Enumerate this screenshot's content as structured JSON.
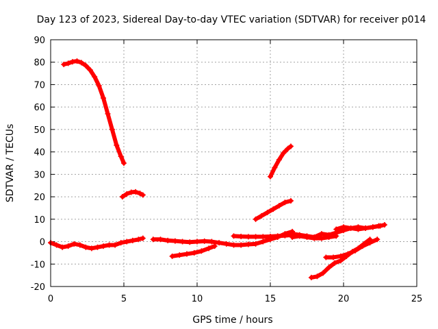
{
  "chart_data": {
    "type": "scatter",
    "title": "Day 123 of 2023, Sidereal Day-to-day VTEC variation (SDTVAR) for receiver p014",
    "xlabel": "GPS time / hours",
    "ylabel": "SDTVAR / TECUs",
    "xlim": [
      0,
      25
    ],
    "ylim": [
      -20,
      90
    ],
    "xticks": [
      0,
      5,
      10,
      15,
      20,
      25
    ],
    "yticks": [
      -20,
      -10,
      0,
      10,
      20,
      30,
      40,
      50,
      60,
      70,
      80,
      90
    ],
    "grid": true,
    "color": "#ff0000",
    "marker": "plus",
    "series": [
      {
        "x": [
          0.9,
          1.2,
          1.5,
          1.8,
          2.1,
          2.4,
          2.7,
          3.0,
          3.3,
          3.6,
          3.9,
          4.2,
          4.5,
          4.8,
          5.0
        ],
        "y": [
          79,
          79.5,
          80.2,
          80.5,
          79.8,
          78.5,
          76.5,
          73.5,
          69.5,
          64,
          57,
          50,
          43,
          38,
          35
        ]
      },
      {
        "x": [
          4.9,
          5.2,
          5.5,
          5.8,
          6.1,
          6.3
        ],
        "y": [
          20,
          21.3,
          22,
          22.2,
          21.5,
          20.8
        ]
      },
      {
        "x": [
          0.0,
          0.4,
          0.8,
          1.2,
          1.6,
          2.0,
          2.4,
          2.8,
          3.2,
          3.6,
          4.0,
          4.4,
          4.8,
          5.2,
          5.6,
          6.0,
          6.3
        ],
        "y": [
          -0.5,
          -1.5,
          -2.5,
          -2,
          -1,
          -1.5,
          -2.5,
          -3,
          -2.5,
          -2,
          -1.5,
          -1.5,
          -0.5,
          0,
          0.5,
          1,
          1.5
        ]
      },
      {
        "x": [
          7.0,
          7.5,
          8.0,
          8.5,
          9.0,
          9.5,
          10.0,
          10.5,
          11.0,
          11.5,
          12.0,
          12.5,
          13.0,
          13.5,
          14.0,
          14.5,
          15.0,
          15.5,
          16.0,
          16.5
        ],
        "y": [
          1,
          1,
          0.5,
          0.3,
          0,
          -0.2,
          0,
          0.2,
          0,
          -0.5,
          -1,
          -1.5,
          -1.5,
          -1.2,
          -1,
          0,
          1,
          2,
          3.5,
          4.5
        ]
      },
      {
        "x": [
          8.3,
          8.8,
          9.3,
          9.8,
          10.3,
          10.8,
          11.2
        ],
        "y": [
          -6.5,
          -6,
          -5.5,
          -5,
          -4.2,
          -3,
          -2
        ]
      },
      {
        "x": [
          12.5,
          13.0,
          13.5,
          14.0,
          14.5,
          15.0,
          15.5,
          16.0,
          16.5
        ],
        "y": [
          2.5,
          2.3,
          2.2,
          2.2,
          2.2,
          2.3,
          2.5,
          2.7,
          3
        ]
      },
      {
        "x": [
          14.0,
          14.4,
          14.8,
          15.2,
          15.6,
          16.0,
          16.4
        ],
        "y": [
          10,
          11.5,
          13,
          14.5,
          16,
          17.5,
          18.2
        ]
      },
      {
        "x": [
          15.0,
          15.3,
          15.6,
          15.9,
          16.2,
          16.4
        ],
        "y": [
          29,
          33,
          36.5,
          39.5,
          41.5,
          42.5
        ]
      },
      {
        "x": [
          16.5,
          17.0,
          17.5,
          18.0,
          18.5,
          19.0,
          19.5,
          20.0,
          20.5,
          21.0,
          21.5,
          22.0,
          22.4
        ],
        "y": [
          3.5,
          3,
          2.5,
          2,
          3.5,
          3,
          4,
          5,
          6,
          6.5,
          6,
          6.5,
          7
        ]
      },
      {
        "x": [
          16.5,
          17.0,
          17.5,
          18.0,
          18.5,
          19.0,
          19.5
        ],
        "y": [
          2,
          2.5,
          2,
          1.5,
          1.5,
          2,
          2.5
        ]
      },
      {
        "x": [
          19.5,
          20.0,
          20.5,
          21.0,
          21.5,
          22.0,
          22.5,
          22.8
        ],
        "y": [
          5.5,
          6.5,
          6,
          5.5,
          6,
          6.5,
          7,
          7.5
        ]
      },
      {
        "x": [
          17.8,
          18.2,
          18.6,
          19.0,
          19.4,
          19.8,
          20.2,
          20.6,
          21.0,
          21.4,
          21.8
        ],
        "y": [
          -16,
          -15.5,
          -14,
          -11.5,
          -9.5,
          -8.5,
          -6.5,
          -4.5,
          -3,
          -1,
          1
        ]
      },
      {
        "x": [
          18.8,
          19.3,
          19.8,
          20.3,
          20.8,
          21.3,
          21.8,
          22.3
        ],
        "y": [
          -7,
          -7,
          -6.5,
          -5.5,
          -4,
          -2,
          -0.5,
          1
        ]
      }
    ]
  }
}
